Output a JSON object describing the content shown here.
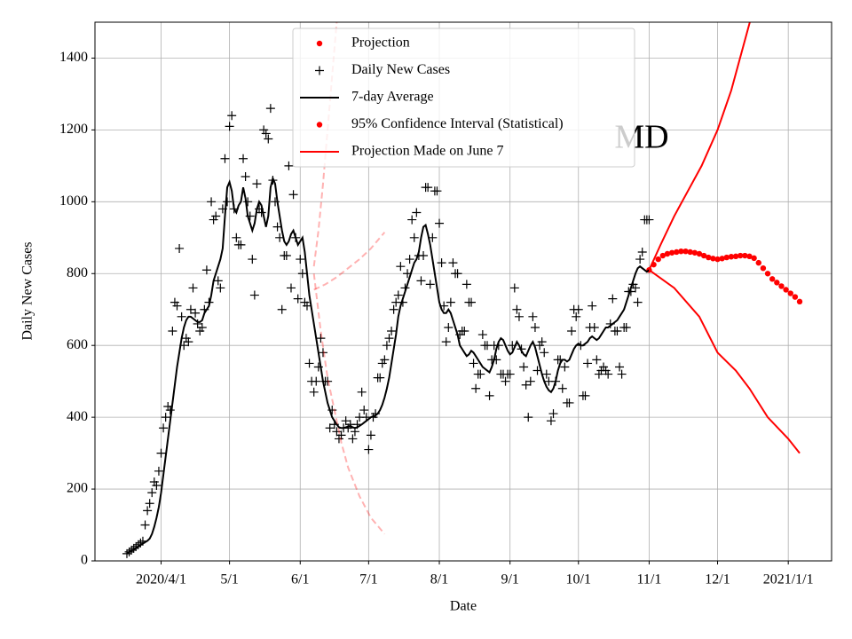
{
  "chart_data": {
    "type": "line",
    "x_label": "Date",
    "y_label": "Daily New Cases",
    "annotation": "MD",
    "grid": true,
    "legend_loc": "upper center",
    "xlim": [
      "2020-03-03",
      "2021-01-20"
    ],
    "ylim": [
      0,
      1500
    ],
    "yticks": [
      0,
      200,
      400,
      600,
      800,
      1000,
      1200,
      1400
    ],
    "xticks": [
      {
        "value": "2020-04-01",
        "label": "2020/4/1"
      },
      {
        "value": "2020-05-01",
        "label": "5/1"
      },
      {
        "value": "2020-06-01",
        "label": "6/1"
      },
      {
        "value": "2020-07-01",
        "label": "7/1"
      },
      {
        "value": "2020-08-01",
        "label": "8/1"
      },
      {
        "value": "2020-09-01",
        "label": "9/1"
      },
      {
        "value": "2020-10-01",
        "label": "10/1"
      },
      {
        "value": "2020-11-01",
        "label": "11/1"
      },
      {
        "value": "2020-12-01",
        "label": "12/1"
      },
      {
        "value": "2021-01-01",
        "label": "2021/1/1"
      }
    ],
    "x": [
      "2020-03-17",
      "2020-03-18",
      "2020-03-19",
      "2020-03-20",
      "2020-03-21",
      "2020-03-22",
      "2020-03-23",
      "2020-03-24",
      "2020-03-25",
      "2020-03-26",
      "2020-03-27",
      "2020-03-28",
      "2020-03-29",
      "2020-03-30",
      "2020-03-31",
      "2020-04-01",
      "2020-04-02",
      "2020-04-03",
      "2020-04-04",
      "2020-04-05",
      "2020-04-06",
      "2020-04-07",
      "2020-04-08",
      "2020-04-09",
      "2020-04-10",
      "2020-04-11",
      "2020-04-12",
      "2020-04-13",
      "2020-04-14",
      "2020-04-15",
      "2020-04-16",
      "2020-04-17",
      "2020-04-18",
      "2020-04-19",
      "2020-04-20",
      "2020-04-21",
      "2020-04-22",
      "2020-04-23",
      "2020-04-24",
      "2020-04-25",
      "2020-04-26",
      "2020-04-27",
      "2020-04-28",
      "2020-04-29",
      "2020-04-30",
      "2020-05-01",
      "2020-05-02",
      "2020-05-03",
      "2020-05-04",
      "2020-05-05",
      "2020-05-06",
      "2020-05-07",
      "2020-05-08",
      "2020-05-09",
      "2020-05-10",
      "2020-05-11",
      "2020-05-12",
      "2020-05-13",
      "2020-05-14",
      "2020-05-15",
      "2020-05-16",
      "2020-05-17",
      "2020-05-18",
      "2020-05-19",
      "2020-05-20",
      "2020-05-21",
      "2020-05-22",
      "2020-05-23",
      "2020-05-24",
      "2020-05-25",
      "2020-05-26",
      "2020-05-27",
      "2020-05-28",
      "2020-05-29",
      "2020-05-30",
      "2020-05-31",
      "2020-06-01",
      "2020-06-02",
      "2020-06-03",
      "2020-06-04",
      "2020-06-05",
      "2020-06-06",
      "2020-06-07",
      "2020-06-08",
      "2020-06-09",
      "2020-06-10",
      "2020-06-11",
      "2020-06-12",
      "2020-06-13",
      "2020-06-14",
      "2020-06-15",
      "2020-06-16",
      "2020-06-17",
      "2020-06-18",
      "2020-06-19",
      "2020-06-20",
      "2020-06-21",
      "2020-06-22",
      "2020-06-23",
      "2020-06-24",
      "2020-06-25",
      "2020-06-26",
      "2020-06-27",
      "2020-06-28",
      "2020-06-29",
      "2020-06-30",
      "2020-07-01",
      "2020-07-02",
      "2020-07-03",
      "2020-07-04",
      "2020-07-05",
      "2020-07-06",
      "2020-07-07",
      "2020-07-08",
      "2020-07-09",
      "2020-07-10",
      "2020-07-11",
      "2020-07-12",
      "2020-07-13",
      "2020-07-14",
      "2020-07-15",
      "2020-07-16",
      "2020-07-17",
      "2020-07-18",
      "2020-07-19",
      "2020-07-20",
      "2020-07-21",
      "2020-07-22",
      "2020-07-23",
      "2020-07-24",
      "2020-07-25",
      "2020-07-26",
      "2020-07-27",
      "2020-07-28",
      "2020-07-29",
      "2020-07-30",
      "2020-07-31",
      "2020-08-01",
      "2020-08-02",
      "2020-08-03",
      "2020-08-04",
      "2020-08-05",
      "2020-08-06",
      "2020-08-07",
      "2020-08-08",
      "2020-08-09",
      "2020-08-10",
      "2020-08-11",
      "2020-08-12",
      "2020-08-13",
      "2020-08-14",
      "2020-08-15",
      "2020-08-16",
      "2020-08-17",
      "2020-08-18",
      "2020-08-19",
      "2020-08-20",
      "2020-08-21",
      "2020-08-22",
      "2020-08-23",
      "2020-08-24",
      "2020-08-25",
      "2020-08-26",
      "2020-08-27",
      "2020-08-28",
      "2020-08-29",
      "2020-08-30",
      "2020-08-31",
      "2020-09-01",
      "2020-09-02",
      "2020-09-03",
      "2020-09-04",
      "2020-09-05",
      "2020-09-06",
      "2020-09-07",
      "2020-09-08",
      "2020-09-09",
      "2020-09-10",
      "2020-09-11",
      "2020-09-12",
      "2020-09-13",
      "2020-09-14",
      "2020-09-15",
      "2020-09-16",
      "2020-09-17",
      "2020-09-18",
      "2020-09-19",
      "2020-09-20",
      "2020-09-21",
      "2020-09-22",
      "2020-09-23",
      "2020-09-24",
      "2020-09-25",
      "2020-09-26",
      "2020-09-27",
      "2020-09-28",
      "2020-09-29",
      "2020-09-30",
      "2020-10-01",
      "2020-10-02",
      "2020-10-03",
      "2020-10-04",
      "2020-10-05",
      "2020-10-06",
      "2020-10-07",
      "2020-10-08",
      "2020-10-09",
      "2020-10-10",
      "2020-10-11",
      "2020-10-12",
      "2020-10-13",
      "2020-10-14",
      "2020-10-15",
      "2020-10-16",
      "2020-10-17",
      "2020-10-18",
      "2020-10-19",
      "2020-10-20",
      "2020-10-21",
      "2020-10-22",
      "2020-10-23",
      "2020-10-24",
      "2020-10-25",
      "2020-10-26",
      "2020-10-27",
      "2020-10-28",
      "2020-10-29",
      "2020-10-30",
      "2020-10-31",
      "2020-11-01"
    ],
    "series": [
      {
        "name": "Projection",
        "color": "#ff0000",
        "plot": "dots",
        "legend_marker": "dot",
        "x": [
          "2020-11-01",
          "2020-11-03",
          "2020-11-05",
          "2020-11-07",
          "2020-11-09",
          "2020-11-11",
          "2020-11-13",
          "2020-11-15",
          "2020-11-17",
          "2020-11-19",
          "2020-11-21",
          "2020-11-23",
          "2020-11-25",
          "2020-11-27",
          "2020-11-29",
          "2020-12-01",
          "2020-12-03",
          "2020-12-05",
          "2020-12-07",
          "2020-12-09",
          "2020-12-11",
          "2020-12-13",
          "2020-12-15",
          "2020-12-17",
          "2020-12-19",
          "2020-12-21",
          "2020-12-23",
          "2020-12-25",
          "2020-12-27",
          "2020-12-29",
          "2020-12-31",
          "2021-01-02",
          "2021-01-04",
          "2021-01-06"
        ],
        "values": [
          810,
          825,
          840,
          850,
          855,
          858,
          860,
          862,
          862,
          860,
          858,
          855,
          850,
          845,
          842,
          840,
          842,
          845,
          847,
          848,
          850,
          850,
          848,
          843,
          830,
          815,
          800,
          785,
          775,
          765,
          755,
          745,
          735,
          722
        ]
      },
      {
        "name": "Daily New Cases",
        "color": "#000000",
        "plot": "plus",
        "legend_marker": "plus",
        "values": [
          20,
          25,
          30,
          35,
          40,
          45,
          50,
          55,
          100,
          140,
          160,
          190,
          220,
          210,
          250,
          300,
          370,
          400,
          430,
          420,
          640,
          720,
          710,
          870,
          680,
          600,
          620,
          610,
          700,
          760,
          690,
          660,
          640,
          650,
          700,
          810,
          720,
          1000,
          950,
          960,
          780,
          760,
          980,
          1120,
          1000,
          1210,
          1240,
          980,
          900,
          880,
          880,
          1120,
          1070,
          1000,
          960,
          840,
          740,
          1050,
          980,
          970,
          1200,
          1190,
          1175,
          1260,
          1060,
          1000,
          930,
          900,
          700,
          850,
          850,
          1100,
          760,
          1020,
          900,
          730,
          840,
          800,
          720,
          710,
          550,
          500,
          470,
          500,
          540,
          620,
          580,
          500,
          500,
          370,
          420,
          380,
          360,
          340,
          350,
          370,
          390,
          370,
          380,
          340,
          360,
          380,
          400,
          470,
          420,
          400,
          310,
          350,
          400,
          410,
          510,
          510,
          550,
          560,
          600,
          620,
          640,
          700,
          720,
          740,
          820,
          720,
          760,
          800,
          840,
          950,
          900,
          970,
          850,
          780,
          850,
          1040,
          1040,
          770,
          900,
          1030,
          1030,
          940,
          830,
          710,
          610,
          650,
          720,
          830,
          800,
          800,
          630,
          640,
          640,
          770,
          720,
          720,
          550,
          480,
          520,
          520,
          630,
          600,
          600,
          460,
          560,
          600,
          560,
          600,
          520,
          520,
          500,
          520,
          520,
          600,
          760,
          700,
          680,
          590,
          540,
          490,
          400,
          500,
          680,
          650,
          530,
          600,
          610,
          580,
          520,
          500,
          390,
          410,
          500,
          560,
          560,
          480,
          540,
          440,
          440,
          640,
          700,
          680,
          700,
          600,
          460,
          460,
          550,
          650,
          710,
          650,
          560,
          520,
          530,
          540,
          530,
          520,
          660,
          730,
          640,
          640,
          540,
          520,
          650,
          650,
          750,
          750,
          770,
          760,
          720,
          840,
          860,
          950,
          950,
          950
        ]
      },
      {
        "name": "7-day Average",
        "color": "#000000",
        "plot": "line",
        "legend_marker": "line",
        "values": [
          20,
          24,
          28,
          32,
          36,
          40,
          44,
          48,
          52,
          56,
          62,
          75,
          95,
          120,
          150,
          190,
          240,
          290,
          340,
          390,
          440,
          490,
          540,
          580,
          620,
          650,
          670,
          680,
          680,
          675,
          670,
          665,
          665,
          670,
          690,
          700,
          710,
          740,
          780,
          800,
          820,
          840,
          870,
          960,
          1040,
          1055,
          1030,
          980,
          970,
          990,
          1000,
          1040,
          1010,
          960,
          940,
          920,
          940,
          980,
          1000,
          990,
          960,
          930,
          960,
          1040,
          1065,
          1050,
          1000,
          960,
          920,
          890,
          880,
          890,
          910,
          920,
          900,
          880,
          890,
          900,
          860,
          800,
          740,
          700,
          660,
          620,
          580,
          540,
          500,
          470,
          440,
          420,
          400,
          390,
          380,
          372,
          370,
          370,
          372,
          374,
          376,
          372,
          370,
          372,
          376,
          380,
          385,
          390,
          395,
          400,
          403,
          405,
          410,
          420,
          435,
          455,
          480,
          510,
          550,
          590,
          630,
          680,
          710,
          730,
          750,
          770,
          790,
          810,
          830,
          840,
          860,
          900,
          930,
          935,
          910,
          880,
          840,
          800,
          760,
          720,
          700,
          690,
          690,
          700,
          690,
          670,
          650,
          630,
          600,
          590,
          580,
          570,
          575,
          585,
          580,
          570,
          560,
          550,
          540,
          535,
          530,
          525,
          540,
          560,
          590,
          610,
          620,
          615,
          600,
          585,
          575,
          580,
          595,
          610,
          600,
          585,
          575,
          570,
          585,
          600,
          610,
          595,
          570,
          545,
          520,
          500,
          485,
          475,
          470,
          480,
          500,
          530,
          550,
          560,
          560,
          555,
          560,
          575,
          590,
          600,
          605,
          600,
          600,
          605,
          610,
          620,
          625,
          620,
          615,
          620,
          630,
          640,
          650,
          650,
          655,
          660,
          665,
          670,
          680,
          690,
          700,
          720,
          740,
          760,
          780,
          800,
          815,
          820,
          815,
          810,
          805,
          810
        ]
      },
      {
        "name": "95% Confidence Interval (Statistical)",
        "color": "#ff0000",
        "plot": "line",
        "legend_marker": "dot",
        "lines": [
          {
            "x": [
              "2020-11-01",
              "2020-11-06",
              "2020-11-12",
              "2020-11-18",
              "2020-11-24",
              "2020-12-01",
              "2020-12-07",
              "2020-12-13",
              "2020-12-16"
            ],
            "values": [
              810,
              880,
              960,
              1030,
              1100,
              1200,
              1310,
              1450,
              1520
            ]
          },
          {
            "x": [
              "2020-11-01",
              "2020-11-12",
              "2020-11-23",
              "2020-12-01",
              "2020-12-09",
              "2020-12-15",
              "2020-12-23",
              "2021-01-01",
              "2021-01-06"
            ],
            "values": [
              810,
              760,
              680,
              580,
              530,
              480,
              400,
              340,
              300
            ]
          }
        ]
      },
      {
        "name": "Projection Made on June 7",
        "color": "#ff0000",
        "plot": "dashed",
        "alpha": 0.3,
        "legend_marker": "line",
        "lines": [
          {
            "x": [
              "2020-06-07",
              "2020-06-12",
              "2020-06-17",
              "2020-06-22",
              "2020-06-27",
              "2020-07-02",
              "2020-07-08"
            ],
            "values": [
              755,
              770,
              790,
              815,
              840,
              870,
              915
            ]
          },
          {
            "x": [
              "2020-06-07",
              "2020-06-10",
              "2020-06-13",
              "2020-06-16",
              "2020-06-19",
              "2020-06-22",
              "2020-06-27",
              "2020-07-02",
              "2020-07-08"
            ],
            "values": [
              800,
              640,
              510,
              420,
              330,
              260,
              180,
              120,
              75
            ]
          },
          {
            "x": [
              "2020-06-07",
              "2020-06-09",
              "2020-06-11",
              "2020-06-13",
              "2020-06-15",
              "2020-06-17"
            ],
            "values": [
              820,
              920,
              1050,
              1200,
              1350,
              1500
            ]
          }
        ]
      }
    ]
  }
}
